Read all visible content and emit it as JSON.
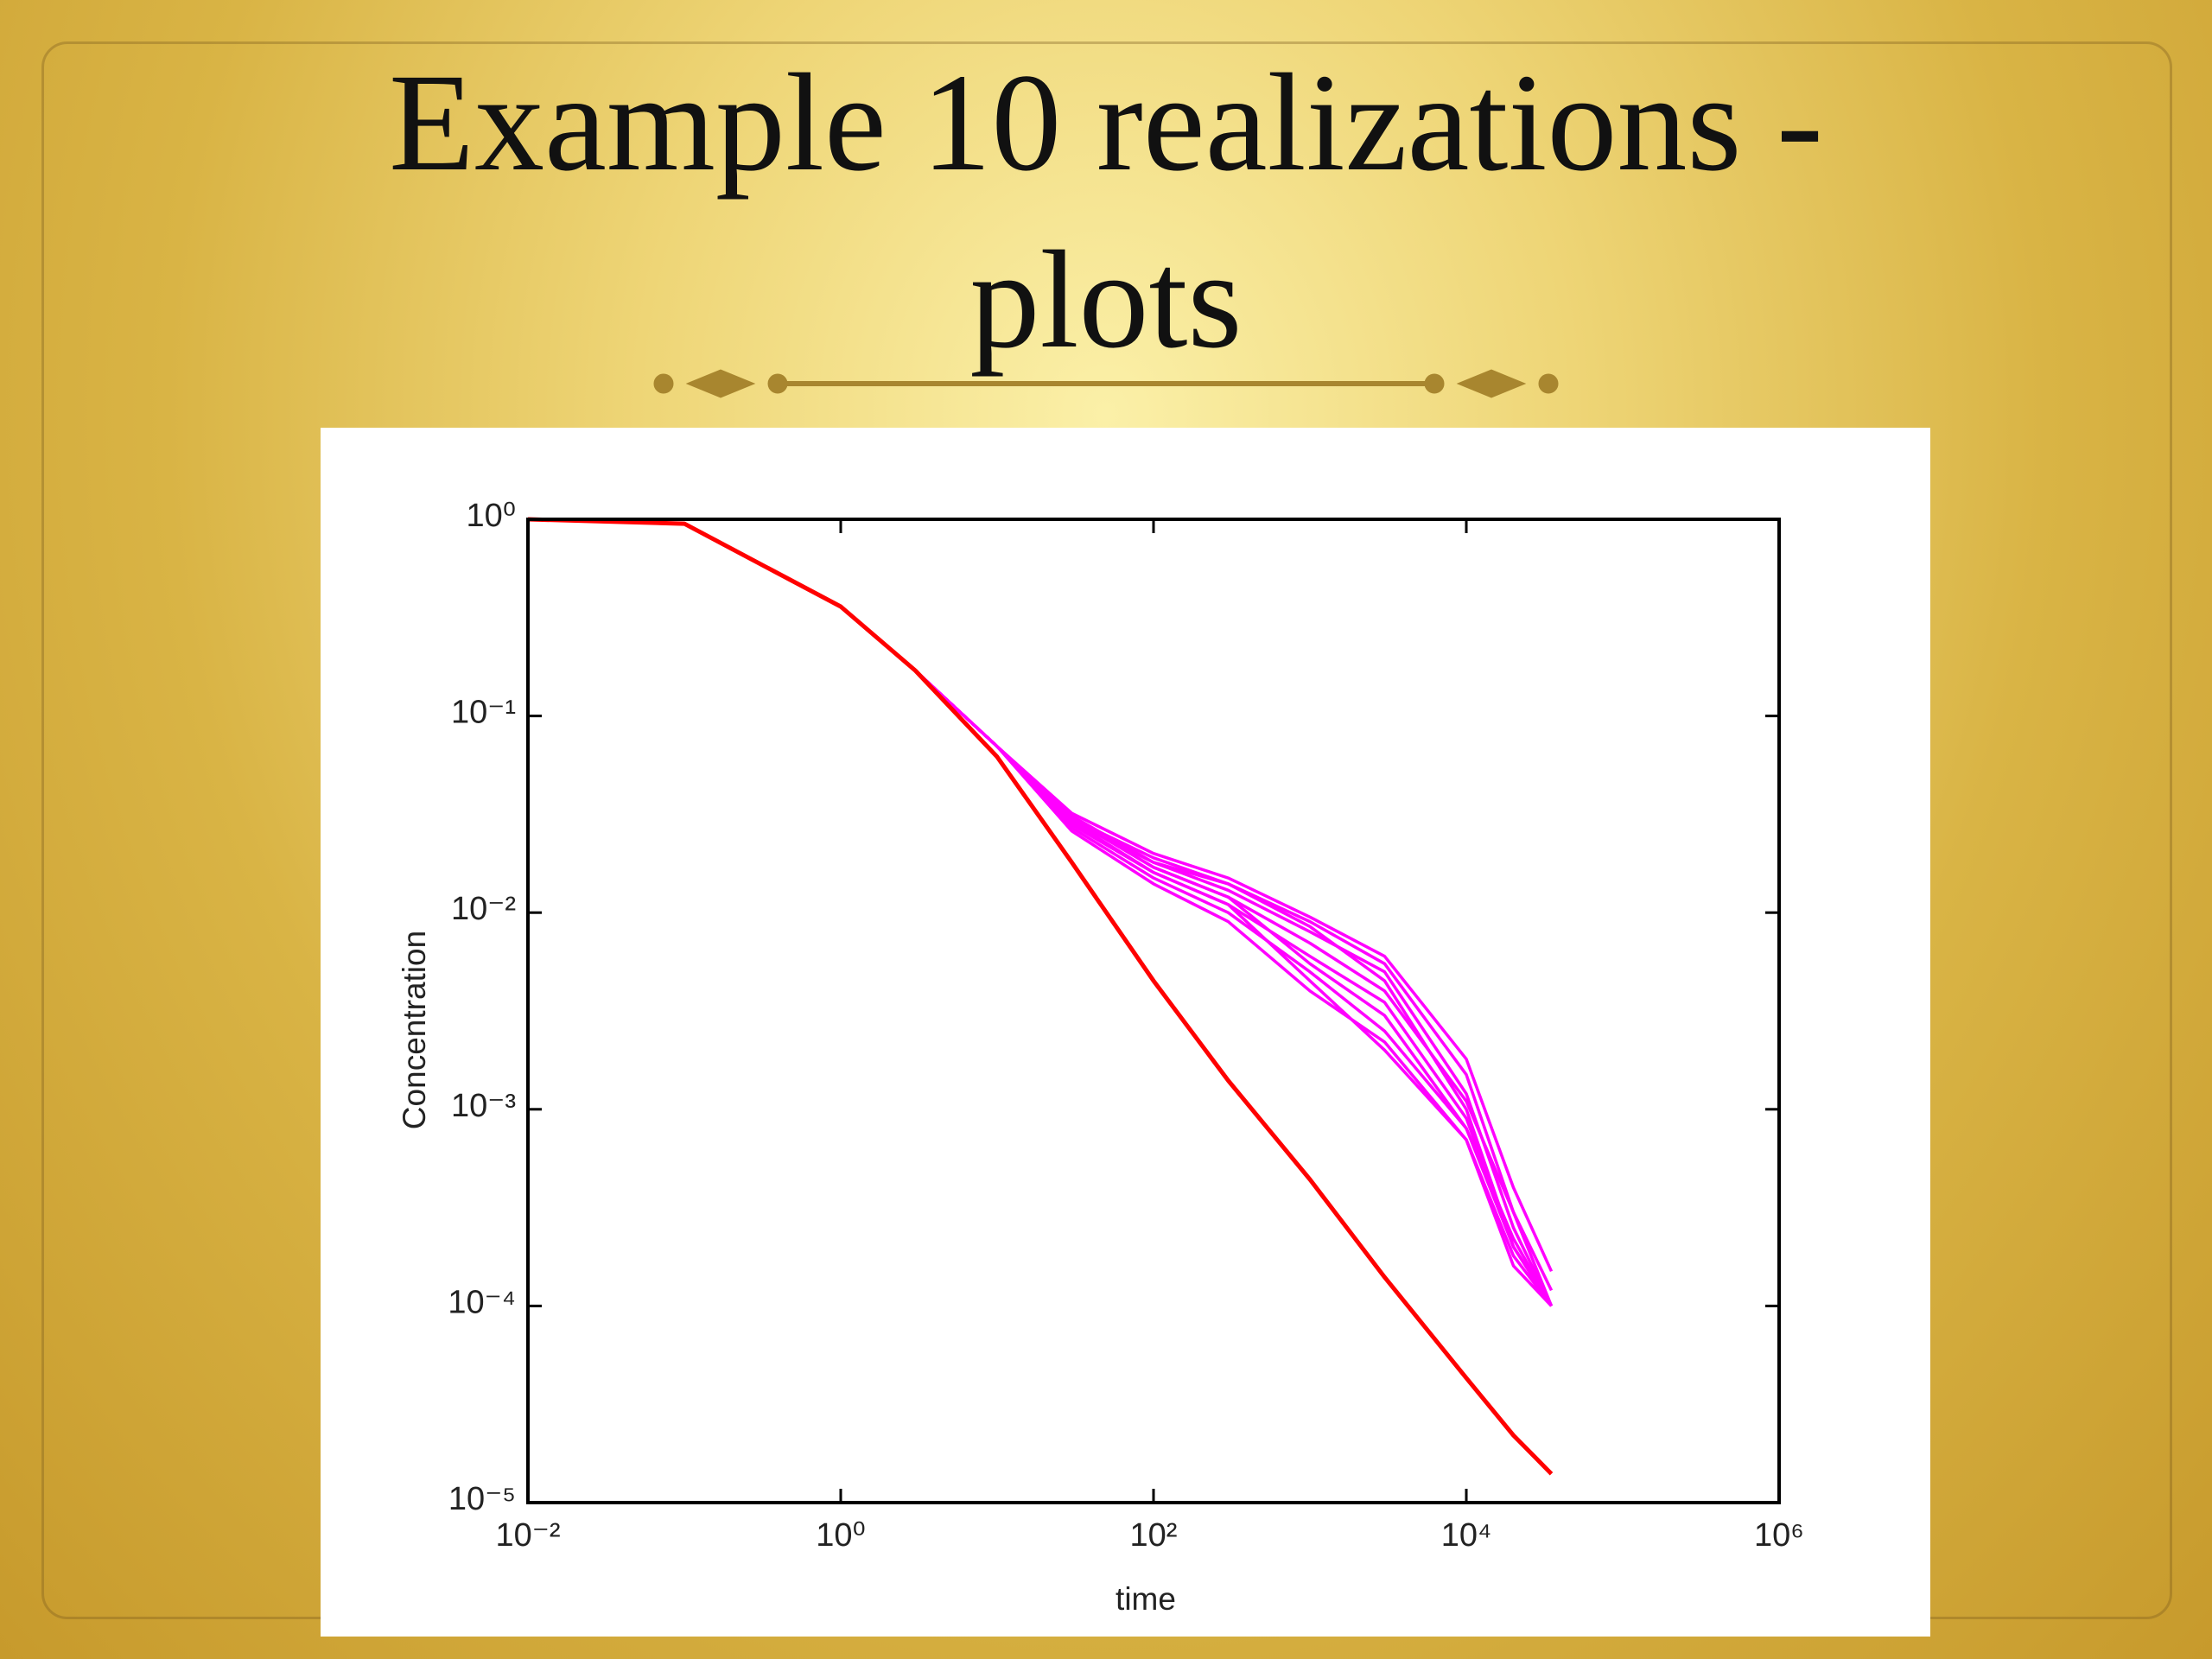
{
  "chart_data": {
    "type": "line",
    "title": "Example 10 realizations - plots",
    "xlabel": "time",
    "ylabel": "Concentration",
    "log_x": true,
    "log_y": true,
    "xlim": [
      0.01,
      1000000
    ],
    "ylim": [
      1e-05,
      1
    ],
    "xticks": [
      {
        "value": 0.01,
        "label": "10⁻²"
      },
      {
        "value": 1,
        "label": "10⁰"
      },
      {
        "value": 100,
        "label": "10²"
      },
      {
        "value": 10000,
        "label": "10⁴"
      },
      {
        "value": 1000000,
        "label": "10⁶"
      }
    ],
    "yticks": [
      {
        "value": 1e-05,
        "label": "10⁻⁵"
      },
      {
        "value": 0.0001,
        "label": "10⁻⁴"
      },
      {
        "value": 0.001,
        "label": "10⁻³"
      },
      {
        "value": 0.01,
        "label": "10⁻²"
      },
      {
        "value": 0.1,
        "label": "10⁻¹"
      },
      {
        "value": 1,
        "label": "10⁰"
      }
    ],
    "x": [
      0.01,
      0.1,
      1,
      3,
      10,
      30,
      100,
      300,
      1000,
      3000,
      10000,
      20000,
      35000
    ],
    "series": [
      {
        "color": "#ff00ff",
        "values": [
          1,
          0.95,
          0.36,
          0.17,
          0.07,
          0.032,
          0.02,
          0.015,
          0.0095,
          0.006,
          0.0018,
          0.0004,
          0.00015
        ]
      },
      {
        "color": "#ff00ff",
        "values": [
          1,
          0.95,
          0.36,
          0.17,
          0.07,
          0.03,
          0.019,
          0.014,
          0.009,
          0.0055,
          0.0015,
          0.0003,
          0.0001
        ]
      },
      {
        "color": "#ff00ff",
        "values": [
          1,
          0.95,
          0.36,
          0.17,
          0.07,
          0.031,
          0.018,
          0.013,
          0.008,
          0.005,
          0.0012,
          0.00025,
          0.0001
        ]
      },
      {
        "color": "#ff00ff",
        "values": [
          1,
          0.95,
          0.36,
          0.17,
          0.07,
          0.029,
          0.018,
          0.014,
          0.0085,
          0.0045,
          0.001,
          0.0002,
          0.0001
        ]
      },
      {
        "color": "#ff00ff",
        "values": [
          1,
          0.95,
          0.36,
          0.17,
          0.07,
          0.03,
          0.017,
          0.012,
          0.007,
          0.004,
          0.0011,
          0.0003,
          0.00012
        ]
      },
      {
        "color": "#ff00ff",
        "values": [
          1,
          0.95,
          0.36,
          0.17,
          0.07,
          0.028,
          0.016,
          0.011,
          0.006,
          0.0035,
          0.0009,
          0.0002,
          0.0001
        ]
      },
      {
        "color": "#ff00ff",
        "values": [
          1,
          0.95,
          0.36,
          0.17,
          0.07,
          0.03,
          0.017,
          0.012,
          0.0055,
          0.003,
          0.0008,
          0.00022,
          0.0001
        ]
      },
      {
        "color": "#ff00ff",
        "values": [
          1,
          0.95,
          0.36,
          0.17,
          0.07,
          0.027,
          0.015,
          0.01,
          0.005,
          0.0025,
          0.0008,
          0.0002,
          0.0001
        ]
      },
      {
        "color": "#ff00ff",
        "values": [
          1,
          0.95,
          0.36,
          0.17,
          0.07,
          0.029,
          0.016,
          0.011,
          0.0045,
          0.002,
          0.0007,
          0.00018,
          0.0001
        ]
      },
      {
        "color": "#ff00ff",
        "values": [
          1,
          0.95,
          0.36,
          0.17,
          0.07,
          0.026,
          0.014,
          0.009,
          0.004,
          0.0022,
          0.0007,
          0.00016,
          0.0001
        ]
      },
      {
        "color": "#ff0000",
        "values": [
          1,
          0.95,
          0.36,
          0.17,
          0.062,
          0.018,
          0.0045,
          0.0014,
          0.00044,
          0.00014,
          4.3e-05,
          2.2e-05,
          1.4e-05
        ]
      }
    ]
  }
}
